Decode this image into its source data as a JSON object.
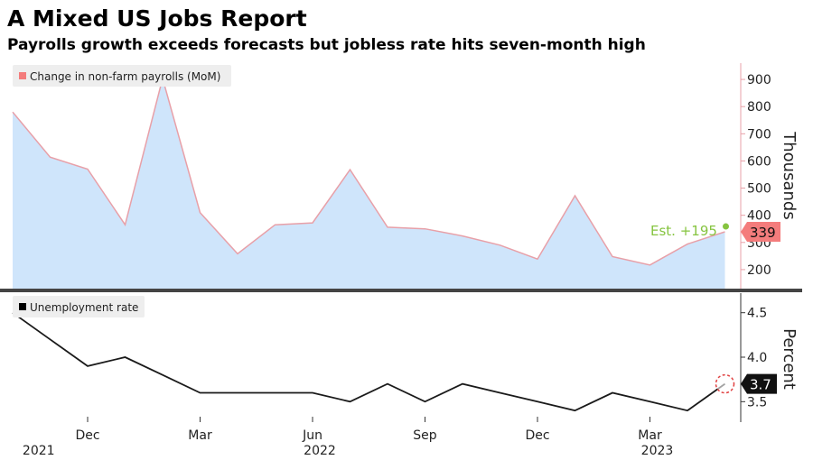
{
  "title": "A Mixed US Jobs Report",
  "subtitle": "Payrolls growth exceeds forecasts but jobless rate hits seven-month high",
  "colors": {
    "payrolls_fill": "#cfe5fb",
    "payrolls_line": "#e8a0a8",
    "payrolls_marker": "#f47c7c",
    "estimate": "#86c440",
    "unemployment_line": "#1a1a1a",
    "axis": "#333333",
    "separator": "#444444"
  },
  "chart_data": [
    {
      "type": "area",
      "legend": "Change in non-farm payrolls (MoM)",
      "ylabel": "Thousands",
      "ylim": [
        130,
        960
      ],
      "yticks": [
        200,
        300,
        400,
        500,
        600,
        700,
        800,
        900
      ],
      "series": [
        {
          "values": [
            780,
            614,
            570,
            365,
            904,
            410,
            258,
            365,
            372,
            568,
            356,
            350,
            324,
            290,
            239,
            472,
            248,
            217,
            294,
            339
          ]
        }
      ],
      "estimate_label": "Est. +195",
      "last_value_label": "339"
    },
    {
      "type": "line",
      "legend": "Unemployment rate",
      "ylabel": "Percent",
      "ylim": [
        3.27,
        4.72
      ],
      "yticks": [
        3.5,
        4.0,
        4.5
      ],
      "ytick_labels": [
        "3.5",
        "4.0",
        "4.5"
      ],
      "series": [
        {
          "values": [
            4.5,
            4.2,
            3.9,
            4.0,
            3.8,
            3.6,
            3.6,
            3.6,
            3.6,
            3.5,
            3.7,
            3.5,
            3.7,
            3.6,
            3.5,
            3.4,
            3.6,
            3.5,
            3.4,
            3.7
          ]
        }
      ],
      "last_value_label": "3.7"
    }
  ],
  "x_axis": {
    "categories": [
      "Oct 2021",
      "Nov 2021",
      "Dec 2021",
      "Jan 2022",
      "Feb 2022",
      "Mar 2022",
      "Apr 2022",
      "May 2022",
      "Jun 2022",
      "Jul 2022",
      "Aug 2022",
      "Sep 2022",
      "Oct 2022",
      "Nov 2022",
      "Dec 2022",
      "Jan 2023",
      "Feb 2023",
      "Mar 2023",
      "Apr 2023",
      "May 2023"
    ],
    "ticks": [
      {
        "index": 2,
        "label": "Dec"
      },
      {
        "index": 5,
        "label": "Mar"
      },
      {
        "index": 8,
        "label": "Jun"
      },
      {
        "index": 11,
        "label": "Sep"
      },
      {
        "index": 14,
        "label": "Dec"
      },
      {
        "index": 17,
        "label": "Mar"
      }
    ],
    "years": [
      {
        "index": 0.5,
        "label": "2021"
      },
      {
        "index": 8,
        "label": "2022"
      },
      {
        "index": 17,
        "label": "2023"
      }
    ]
  }
}
